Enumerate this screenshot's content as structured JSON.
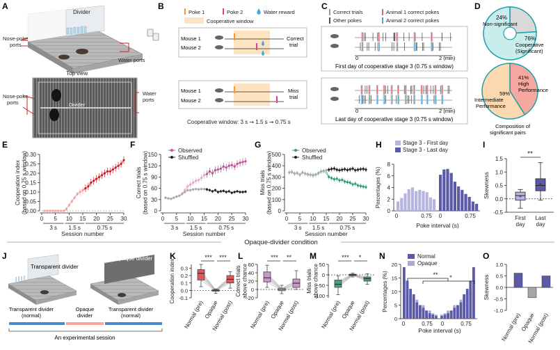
{
  "colors": {
    "pink": "#c0509a",
    "pink_light": "#e3a9d3",
    "gray": "#808080",
    "black": "#222222",
    "green": "#2e9c6e",
    "green_light": "#a8d8c0",
    "red": "#c8202e",
    "lavender": "#b7b5de",
    "indigo": "#5b5aa8",
    "teal": "#1aa0a8",
    "teal_fill": "#c9ecec",
    "nonsig": "#d9d9d9",
    "orange": "#f39a2a",
    "magenta": "#d9409a",
    "blue": "#47a7e0",
    "window": "#fde3c0",
    "salmon": "#f4a8a0",
    "peach": "#fbd8b0",
    "gray_bar": "#a5a5a5"
  },
  "panel_labels": [
    "A",
    "B",
    "C",
    "D",
    "E",
    "F",
    "G",
    "H",
    "I",
    "J",
    "K",
    "L",
    "M",
    "N",
    "O"
  ],
  "panelA": {
    "divider": "Divider",
    "nose_poke_ports": [
      "Nose-poke",
      "ports"
    ],
    "water_ports": "Water ports",
    "top_view": "Top view",
    "divider2": "Divider",
    "nose_poke_ports2": [
      "Nose-poke",
      "ports"
    ],
    "water_ports2": [
      "Water",
      "ports"
    ]
  },
  "panelB": {
    "legend": {
      "poke1": "Poke 1",
      "poke2": "Poke 2",
      "reward": "Water reward",
      "window": "Cooperative window"
    },
    "mouse1": "Mouse 1",
    "mouse2": "Mouse 2",
    "correct": [
      "Correct",
      "trial"
    ],
    "miss": [
      "Miss",
      "trial"
    ],
    "caption": "Cooperative window: 3 s ➞ 1.5 s ➞ 0.75 s"
  },
  "panelC": {
    "legend": {
      "correct": "Correct trials",
      "other": "Other pokes",
      "a1": "Animal 1 correct pokes",
      "a2": "Animal 2 correct pokes"
    },
    "axis_start": "0",
    "axis_end": "2 (min)",
    "first": "First day of cooperative stage 3 (0.75 s window)",
    "last": "Last day of cooperative stage 3 (0.75 s window)"
  },
  "panelD": {
    "nonsig_pct": "24%",
    "nonsig_label": "Non-significant",
    "coop_pct": "76%",
    "coop_label": [
      "Cooperative",
      "(Significant)"
    ],
    "high": [
      "41%",
      "High",
      "Performance"
    ],
    "inter": [
      "59%",
      "Intermediate",
      "Performance"
    ],
    "caption": [
      "Composition of",
      "significant pairs"
    ],
    "pie1_values": [
      24,
      76
    ],
    "pie2_values": [
      41,
      59
    ]
  },
  "panelE": {
    "ylabel": [
      "Cooperation index",
      "(based on 0.75 s window)"
    ],
    "yticks": [
      "0.00",
      "0.05",
      "0.10",
      "0.15",
      "0.20",
      "0.25",
      "0.30"
    ]
  },
  "panelF": {
    "ylabel": [
      "Correct trials",
      "(based on 0.75 s window)"
    ],
    "yticks": [
      "0",
      "30",
      "60",
      "90",
      "120",
      "150"
    ],
    "legend": [
      "Observed",
      "Shuffled"
    ]
  },
  "panelG": {
    "ylabel": [
      "Miss trials",
      "(based on 0.75 s window)"
    ],
    "yticks": [
      "0",
      "100",
      "200",
      "300",
      "400",
      "500"
    ],
    "legend": [
      "Observed",
      "Shuffled"
    ]
  },
  "session": {
    "xticks": [
      "0",
      "5",
      "10",
      "15",
      "20",
      "25",
      "30"
    ],
    "windows": [
      "3 s",
      "1.5 s",
      "0.75 s"
    ],
    "xlabel": "Session number"
  },
  "panelH": {
    "legend": [
      "Stage 3 - First day",
      "Stage 3 - Last day"
    ],
    "ylabel": "Percentages (%)",
    "yticks": [
      "0",
      "2",
      "4",
      "6",
      "8"
    ],
    "xticks": [
      "0",
      "0.75",
      "0",
      "0.75"
    ],
    "xlabel": "Poke interval (s)"
  },
  "panelI": {
    "ylabel": "Skewness",
    "yticks": [
      "-0.5",
      "0.0",
      "0.5",
      "1.0",
      "1.5"
    ],
    "xlabels": [
      [
        "First",
        "day"
      ],
      [
        "Last",
        "day"
      ]
    ],
    "sig": "**"
  },
  "divider_title": "Opaque-divider condition",
  "panelJ": {
    "transparent": "Transparent divider",
    "opaque": "Opaque divider",
    "seg1": [
      "Transparent divider",
      "(normal)"
    ],
    "seg2": [
      "Opaque",
      "divider"
    ],
    "seg3": [
      "Transparent divider",
      "(normal)"
    ],
    "session": "An experimental session"
  },
  "panelK": {
    "ylabel": "Cooperation index",
    "yticks": [
      "-0.1",
      "0.0",
      "0.1",
      "0.2",
      "0.3"
    ],
    "sig": [
      "***",
      "***"
    ]
  },
  "panelL": {
    "ylabel": [
      "Correct trials",
      "above chance"
    ],
    "yticks": [
      "-20",
      "0",
      "20",
      "40",
      "60"
    ],
    "sig": [
      "***",
      "**"
    ]
  },
  "panelM": {
    "ylabel": [
      "Miss trials",
      "above chance"
    ],
    "yticks": [
      "-100",
      "-50",
      "0",
      "50"
    ],
    "sig": [
      "***",
      "*"
    ]
  },
  "groups": [
    "Normal (pre)",
    "Opaque",
    "Normal (post)"
  ],
  "panelN": {
    "legend": [
      "Normal",
      "Opaque"
    ],
    "ylabel": "Percentages (%)",
    "yticks": [
      "0",
      "5",
      "10",
      "15",
      "20"
    ],
    "xticks": [
      "0",
      "0.75",
      "0",
      "0.75"
    ],
    "xlabel": "Poke interval (s)",
    "sig": [
      "**",
      "*"
    ]
  },
  "panelO": {
    "ylabel": "Skewness",
    "yticks": [
      "-1.0",
      "-0.5",
      "0.0",
      "0.5",
      "1.0"
    ]
  },
  "chart_data": [
    {
      "panel": "E",
      "type": "line",
      "x": [
        1,
        2,
        3,
        4,
        5,
        6,
        7,
        8,
        9,
        10,
        11,
        12,
        13,
        14,
        15,
        16,
        17,
        18,
        19,
        20,
        21,
        22,
        23,
        24,
        25,
        26,
        27,
        28,
        29,
        30
      ],
      "series": [
        {
          "name": "Cooperation index",
          "values": [
            0.0,
            0.0,
            0.0,
            0.0,
            0.0,
            0.0,
            0.0,
            0.0,
            0.01,
            0.03,
            0.05,
            0.07,
            0.09,
            0.1,
            0.11,
            0.12,
            0.13,
            0.15,
            0.16,
            0.17,
            0.18,
            0.19,
            0.2,
            0.21,
            0.21,
            0.22,
            0.23,
            0.24,
            0.25,
            0.27
          ],
          "err": [
            0,
            0,
            0,
            0,
            0,
            0,
            0,
            0,
            0.01,
            0.01,
            0.01,
            0.01,
            0.01,
            0.02,
            0.02,
            0.02,
            0.02,
            0.02,
            0.02,
            0.02,
            0.02,
            0.02,
            0.02,
            0.02,
            0.02,
            0.02,
            0.02,
            0.02,
            0.02,
            0.02
          ]
        }
      ],
      "xlabel": "Session number",
      "ylabel": "Cooperation index (based on 0.75 s window)",
      "ylim": [
        0,
        0.3
      ]
    },
    {
      "panel": "F",
      "type": "line",
      "x": [
        1,
        2,
        3,
        4,
        5,
        6,
        7,
        8,
        9,
        10,
        11,
        12,
        13,
        14,
        15,
        16,
        17,
        18,
        19,
        20,
        21,
        22,
        23,
        24,
        25,
        26,
        27,
        28,
        29,
        30
      ],
      "series": [
        {
          "name": "Observed",
          "values": [
            35,
            33,
            32,
            35,
            38,
            40,
            45,
            55,
            65,
            70,
            75,
            80,
            82,
            88,
            95,
            98,
            105,
            100,
            108,
            110,
            112,
            118,
            115,
            120,
            122,
            118,
            125,
            128,
            130,
            132
          ],
          "err": [
            3,
            3,
            3,
            3,
            4,
            4,
            5,
            6,
            7,
            8,
            8,
            8,
            8,
            9,
            10,
            10,
            10,
            10,
            10,
            10,
            10,
            10,
            10,
            10,
            10,
            10,
            10,
            10,
            10,
            10
          ]
        },
        {
          "name": "Shuffled",
          "values": [
            35,
            33,
            32,
            35,
            38,
            40,
            45,
            50,
            55,
            55,
            57,
            58,
            57,
            58,
            58,
            57,
            55,
            52,
            55,
            50,
            52,
            53,
            50,
            52,
            48,
            50,
            52,
            50,
            50,
            51
          ],
          "err": [
            3,
            3,
            3,
            3,
            3,
            3,
            4,
            4,
            4,
            4,
            4,
            4,
            4,
            4,
            4,
            4,
            4,
            4,
            4,
            4,
            4,
            4,
            4,
            4,
            4,
            4,
            4,
            4,
            4,
            4
          ]
        }
      ],
      "xlabel": "Session number",
      "ylabel": "Correct trials (based on 0.75 s window)",
      "ylim": [
        0,
        150
      ]
    },
    {
      "panel": "G",
      "type": "line",
      "x": [
        1,
        2,
        3,
        4,
        5,
        6,
        7,
        8,
        9,
        10,
        11,
        12,
        13,
        14,
        15,
        16,
        17,
        18,
        19,
        20,
        21,
        22,
        23,
        24,
        25,
        26,
        27,
        28,
        29,
        30
      ],
      "series": [
        {
          "name": "Observed",
          "values": [
            340,
            345,
            330,
            335,
            320,
            340,
            330,
            320,
            320,
            310,
            320,
            330,
            345,
            350,
            340,
            300,
            290,
            280,
            285,
            270,
            275,
            260,
            255,
            250,
            235,
            240,
            225,
            220,
            215,
            210
          ],
          "err": [
            20,
            20,
            20,
            20,
            20,
            20,
            20,
            20,
            20,
            20,
            20,
            20,
            20,
            20,
            20,
            20,
            20,
            20,
            20,
            20,
            20,
            20,
            20,
            20,
            20,
            20,
            20,
            20,
            20,
            20
          ]
        },
        {
          "name": "Shuffled",
          "values": [
            340,
            345,
            330,
            335,
            320,
            340,
            330,
            325,
            320,
            318,
            322,
            335,
            350,
            355,
            360,
            365,
            372,
            375,
            365,
            360,
            365,
            370,
            362,
            368,
            375,
            360,
            365,
            370,
            372,
            365
          ],
          "err": [
            20,
            20,
            20,
            20,
            20,
            20,
            20,
            20,
            20,
            20,
            20,
            20,
            20,
            20,
            20,
            20,
            20,
            20,
            20,
            20,
            20,
            20,
            20,
            20,
            20,
            20,
            20,
            20,
            20,
            20
          ]
        }
      ],
      "xlabel": "Session number",
      "ylabel": "Miss trials (based on 0.75 s window)",
      "ylim": [
        0,
        500
      ]
    },
    {
      "panel": "H",
      "type": "bar",
      "series": [
        {
          "name": "Stage 3 - First day",
          "values": [
            1.6,
            2.2,
            3.0,
            3.7,
            4.0,
            3.4,
            3.6,
            3.4,
            3.2,
            2.3,
            2.0
          ]
        },
        {
          "name": "Stage 3 - Last day",
          "values": [
            6.2,
            7.1,
            7.2,
            6.5,
            5.0,
            4.2,
            3.6,
            2.9,
            2.4,
            1.6,
            1.2
          ]
        }
      ],
      "xlabel": "Poke interval (s)",
      "ylabel": "Percentages (%)",
      "ylim": [
        0,
        8
      ]
    },
    {
      "panel": "I",
      "type": "box",
      "categories": [
        "First day",
        "Last day"
      ],
      "boxes": [
        {
          "min": -0.35,
          "q1": -0.05,
          "median": 0.12,
          "q3": 0.25,
          "max": 0.35,
          "mean": 0.08,
          "outliers": [
            -0.3
          ]
        },
        {
          "min": -0.05,
          "q1": 0.3,
          "median": 0.5,
          "q3": 0.75,
          "max": 1.35,
          "mean": 0.55,
          "outliers": []
        }
      ],
      "ylabel": "Skewness",
      "ylim": [
        -0.5,
        1.5
      ]
    },
    {
      "panel": "K",
      "type": "box",
      "categories": [
        "Normal (pre)",
        "Opaque",
        "Normal (post)"
      ],
      "boxes": [
        {
          "min": 0.05,
          "q1": 0.14,
          "median": 0.23,
          "q3": 0.28,
          "max": 0.35
        },
        {
          "min": -0.04,
          "q1": -0.01,
          "median": 0.0,
          "q3": 0.01,
          "max": 0.02
        },
        {
          "min": 0.03,
          "q1": 0.1,
          "median": 0.15,
          "q3": 0.2,
          "max": 0.25
        }
      ],
      "ylabel": "Cooperation index",
      "ylim": [
        -0.1,
        0.35
      ]
    },
    {
      "panel": "L",
      "type": "box",
      "categories": [
        "Normal (pre)",
        "Opaque",
        "Normal (post)"
      ],
      "boxes": [
        {
          "min": 5,
          "q1": 18,
          "median": 28,
          "q3": 42,
          "max": 58
        },
        {
          "min": -10,
          "q1": -3,
          "median": 0,
          "q3": 3,
          "max": 10
        },
        {
          "min": 0,
          "q1": 5,
          "median": 15,
          "q3": 25,
          "max": 45
        }
      ],
      "ylabel": "Correct trials above chance",
      "ylim": [
        -20,
        60
      ]
    },
    {
      "panel": "M",
      "type": "box",
      "categories": [
        "Normal (pre)",
        "Opaque",
        "Normal (post)"
      ],
      "boxes": [
        {
          "min": -95,
          "q1": -60,
          "median": -45,
          "q3": -25,
          "max": -5
        },
        {
          "min": -10,
          "q1": -3,
          "median": 0,
          "q3": 3,
          "max": 8
        },
        {
          "min": -45,
          "q1": -30,
          "median": -18,
          "q3": -10,
          "max": 5
        }
      ],
      "ylabel": "Miss trials above chance",
      "ylim": [
        -110,
        50
      ]
    },
    {
      "panel": "N",
      "type": "bar",
      "series": [
        {
          "name": "Normal",
          "left": [
            19,
            14,
            11,
            9,
            6,
            5,
            4,
            3,
            2,
            1.5,
            1
          ],
          "right": [
            1,
            1.5,
            2,
            3,
            4,
            5,
            6,
            9,
            11,
            14,
            19
          ]
        },
        {
          "name": "Opaque",
          "left": [
            14,
            10,
            9,
            8,
            7,
            5,
            5,
            3,
            3,
            2,
            1.5
          ],
          "right": [
            1.5,
            2,
            3,
            3,
            5,
            5,
            7,
            8,
            9,
            10,
            14
          ]
        }
      ],
      "xlabel": "Poke interval (s)",
      "ylabel": "Percentages (%)",
      "ylim": [
        0,
        20
      ]
    },
    {
      "panel": "O",
      "type": "bar",
      "categories": [
        "Normal (pre)",
        "Opaque",
        "Normal (post)"
      ],
      "values": [
        0.62,
        -0.45,
        0.5
      ],
      "ylabel": "Skewness",
      "ylim": [
        -1.0,
        1.0
      ]
    }
  ]
}
